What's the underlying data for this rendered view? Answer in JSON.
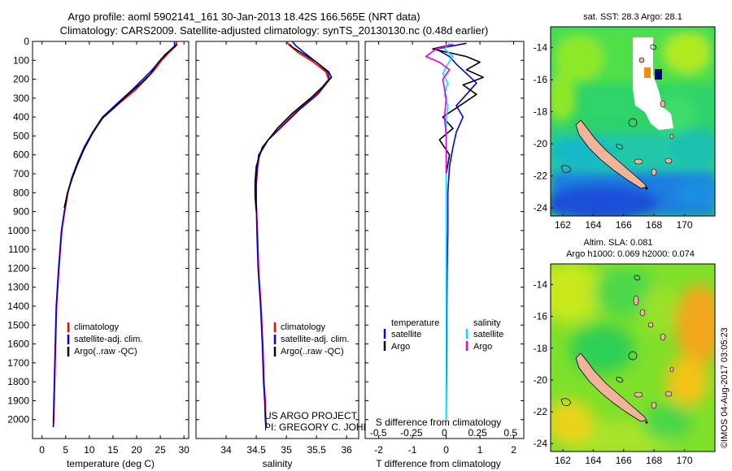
{
  "header": {
    "title_line1": "Argo profile: aoml 5902141_161 30-Jan-2013 18.42S 166.565E (NRT data)",
    "title_line2": "Climatology: CARS2009. Satellite-adjusted climatology: synTS_20130130.nc (0.48d earlier)"
  },
  "colors": {
    "climatology": "#ff0000",
    "satellite": "#0000e0",
    "argo": "#000000",
    "sat_salinity": "#00e0ff",
    "argo_salinity": "#e000e0",
    "land": "#f0b49a"
  },
  "chart_data": [
    {
      "type": "line",
      "name": "temperature-panel",
      "xlabel": "temperature (deg C)",
      "ylabel": "",
      "xlim": [
        -2,
        31
      ],
      "ylim": [
        2100,
        0
      ],
      "xticks": [
        0,
        5,
        10,
        15,
        20,
        25,
        30
      ],
      "yticks": [
        0,
        100,
        200,
        300,
        400,
        500,
        600,
        700,
        800,
        900,
        1000,
        1100,
        1200,
        1300,
        1400,
        1500,
        1600,
        1700,
        1800,
        1900,
        2000
      ],
      "legend": [
        "climatology",
        "satellite-adj. clim.",
        "Argo(..raw -QC)"
      ],
      "series": [
        {
          "name": "climatology",
          "color": "#ff0000",
          "x": [
            28.5,
            28.2,
            26.8,
            25.3,
            23.8,
            22.0,
            19.6,
            16.2,
            13.0,
            10.8,
            9.0,
            7.6,
            6.4,
            5.5,
            4.8,
            4.2,
            3.6,
            3.1,
            2.9,
            2.7,
            2.6,
            2.5,
            2.4
          ],
          "depth": [
            0,
            25,
            60,
            100,
            150,
            200,
            260,
            330,
            400,
            480,
            560,
            640,
            720,
            800,
            900,
            1000,
            1200,
            1400,
            1600,
            1800,
            1900,
            2000,
            2040
          ]
        },
        {
          "name": "satellite",
          "color": "#0000e0",
          "x": [
            28.0,
            28.0,
            26.5,
            25.0,
            23.3,
            21.3,
            18.9,
            15.8,
            12.8,
            10.7,
            8.9,
            7.5,
            6.3,
            5.4,
            4.7,
            4.1,
            3.5,
            3.0,
            2.8,
            2.6,
            2.5,
            2.4,
            2.4
          ],
          "depth": [
            0,
            25,
            60,
            100,
            150,
            200,
            260,
            330,
            400,
            480,
            560,
            640,
            720,
            800,
            900,
            1000,
            1200,
            1400,
            1600,
            1800,
            1900,
            2000,
            2040
          ]
        },
        {
          "name": "argo",
          "color": "#000000",
          "x": [
            28.6,
            28.0,
            26.0,
            24.3,
            23.0,
            21.0,
            18.2,
            15.3,
            12.6,
            10.6,
            8.9,
            7.5,
            6.3,
            5.4,
            4.7
          ],
          "depth": [
            15,
            30,
            70,
            120,
            170,
            220,
            280,
            350,
            410,
            490,
            570,
            650,
            730,
            800,
            880
          ]
        }
      ]
    },
    {
      "type": "line",
      "name": "salinity-panel",
      "xlabel": "salinity",
      "xlim": [
        33.5,
        36.2
      ],
      "ylim": [
        2100,
        0
      ],
      "xticks": [
        34,
        34.5,
        35,
        35.5,
        36
      ],
      "xticklabels": [
        "34",
        "34.5",
        "35",
        "35.5",
        "36"
      ],
      "legend": [
        "climatology",
        "satellite-adj. clim.",
        "Argo(..raw -QC)"
      ],
      "series": [
        {
          "name": "climatology",
          "color": "#ff0000",
          "x": [
            35.0,
            35.05,
            35.2,
            35.45,
            35.65,
            35.7,
            35.5,
            35.2,
            34.95,
            34.7,
            34.55,
            34.52,
            34.5,
            34.5,
            34.52,
            34.54,
            34.58,
            34.61,
            34.63,
            34.65,
            34.66,
            34.67
          ],
          "depth": [
            0,
            20,
            60,
            110,
            160,
            200,
            280,
            360,
            440,
            520,
            600,
            680,
            760,
            850,
            1000,
            1200,
            1400,
            1600,
            1800,
            1900,
            2000,
            2040
          ]
        },
        {
          "name": "satellite",
          "color": "#0000e0",
          "x": [
            35.1,
            35.15,
            35.3,
            35.5,
            35.68,
            35.72,
            35.52,
            35.22,
            34.96,
            34.7,
            34.54,
            34.51,
            34.5,
            34.5,
            34.51,
            34.53,
            34.57,
            34.6,
            34.62,
            34.64,
            34.65,
            34.66
          ],
          "depth": [
            0,
            20,
            60,
            110,
            160,
            200,
            280,
            360,
            440,
            520,
            600,
            680,
            760,
            850,
            1000,
            1200,
            1400,
            1600,
            1800,
            1900,
            2000,
            2040
          ]
        },
        {
          "name": "argo",
          "color": "#000000",
          "x": [
            35.05,
            35.1,
            35.3,
            35.5,
            35.7,
            35.75,
            35.6,
            35.4,
            35.1,
            34.85,
            34.6,
            34.5,
            34.48,
            34.48,
            34.5
          ],
          "depth": [
            15,
            30,
            70,
            110,
            160,
            190,
            240,
            300,
            380,
            460,
            560,
            660,
            740,
            820,
            900
          ]
        }
      ],
      "annotation_line1": "US ARGO PROJECT",
      "annotation_line2": "PI: GREGORY C. JOHNSON"
    },
    {
      "type": "line",
      "name": "difference-panel",
      "xlabel": "T difference from climatology",
      "xlabel_top": "S difference from climatology",
      "xlim": [
        -2.4,
        2.3
      ],
      "ylim": [
        2100,
        0
      ],
      "xticks": [
        -2,
        -1,
        0,
        1,
        2
      ],
      "xticklabels": [
        "-2",
        "-1",
        "0",
        "1",
        "2"
      ],
      "xticks_s": [
        -0.5,
        -0.25,
        0,
        0.25,
        0.5
      ],
      "xticklabels_s": [
        "-0.5",
        "-0.25",
        "0",
        "0.25",
        "0.5"
      ],
      "legend_headers": [
        "temperature",
        "salinity"
      ],
      "legend": [
        "satellite",
        "Argo",
        "satellite",
        "Argo"
      ],
      "series": [
        {
          "name": "satellite T",
          "color": "#0000e0",
          "x": [
            0.6,
            -0.3,
            0.1,
            0.3,
            0.6,
            0.9,
            0.6,
            0.3,
            0.5,
            0.3,
            0.2,
            0.1,
            0.05,
            0.05,
            0.03,
            0.02,
            0.02,
            0.01,
            0.0
          ],
          "depth": [
            10,
            40,
            80,
            120,
            170,
            220,
            280,
            340,
            400,
            480,
            560,
            660,
            800,
            1000,
            1200,
            1400,
            1600,
            1800,
            2000
          ]
        },
        {
          "name": "Argo T",
          "color": "#000000",
          "x": [
            0.2,
            -0.4,
            0.6,
            1.0,
            0.6,
            1.1,
            0.5,
            0.9,
            0.4,
            -0.1,
            0.2,
            -0.2,
            0.1,
            0.0
          ],
          "depth": [
            15,
            40,
            80,
            110,
            150,
            190,
            230,
            280,
            340,
            400,
            460,
            520,
            600,
            700
          ]
        },
        {
          "name": "satellite S",
          "color": "#00e0ff",
          "x": [
            0.1,
            -0.05,
            0.2,
            0.05,
            -0.1,
            0.05,
            -0.05,
            0.05,
            0.0,
            0.0,
            0.0,
            0.0,
            0.0,
            0.0,
            0.0
          ],
          "depth": [
            10,
            40,
            80,
            120,
            170,
            220,
            280,
            340,
            420,
            520,
            700,
            900,
            1200,
            1600,
            2000
          ]
        },
        {
          "name": "Argo S",
          "color": "#e000e0",
          "x": [
            0.2,
            -0.3,
            -0.6,
            -0.2,
            0.1,
            -0.1,
            0.0,
            -0.05,
            0.0,
            0.0,
            0.0
          ],
          "depth": [
            15,
            40,
            80,
            110,
            150,
            200,
            300,
            400,
            500,
            600,
            700
          ]
        }
      ]
    },
    {
      "type": "heatmap",
      "name": "sst-map",
      "title": "sat. SST: 28.3 Argo: 28.1",
      "xlim": [
        161.2,
        172.0
      ],
      "ylim": [
        -24.5,
        -12.7
      ],
      "xticks": [
        162,
        164,
        166,
        168,
        170
      ],
      "yticks": [
        -14,
        -16,
        -18,
        -20,
        -22,
        -24
      ],
      "argo_position": [
        166.565,
        -18.42
      ]
    },
    {
      "type": "heatmap",
      "name": "sla-map",
      "title_line1": "Altim. SLA: 0.081",
      "title_line2": "Argo h1000: 0.069 h2000: 0.074",
      "xlim": [
        161.2,
        172.0
      ],
      "ylim": [
        -24.5,
        -12.7
      ],
      "xticks": [
        162,
        164,
        166,
        168,
        170
      ],
      "yticks": [
        -14,
        -16,
        -18,
        -20,
        -22,
        -24
      ],
      "argo_position": [
        166.565,
        -18.42
      ]
    }
  ],
  "watermark": "©IMOS 04-Aug-2017 03:05:23"
}
